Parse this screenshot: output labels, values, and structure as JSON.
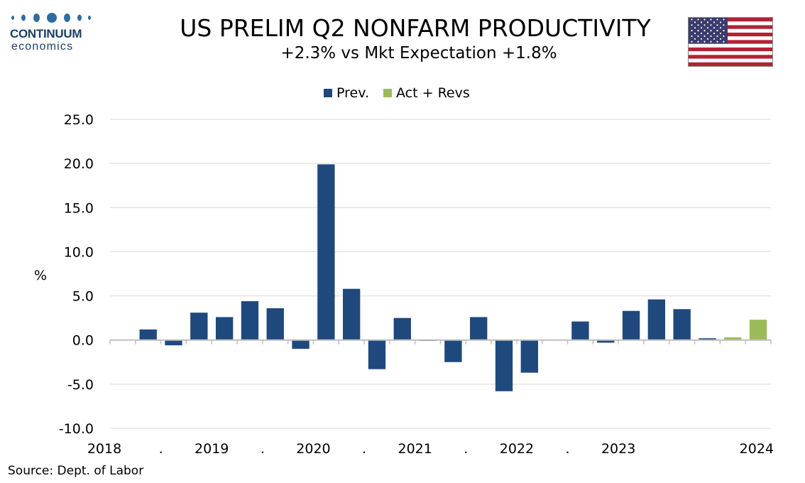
{
  "header": {
    "title": "US PRELIM Q2  NONFARM PRODUCTIVITY",
    "subtitle": "+2.3% vs Mkt Expectation +1.8%",
    "logo_word": "CONTINUUM",
    "logo_sub": "economics",
    "flag_icon": "us-flag-icon"
  },
  "footer": {
    "source": "Source: Dept. of Labor"
  },
  "colors": {
    "prev": "#1f497d",
    "act": "#9bbb59",
    "grid": "#d9d9d9",
    "axis": "#bfbfbf",
    "logo": "#1b3f66"
  },
  "chart_data": {
    "type": "bar",
    "title": "US PRELIM Q2  NONFARM PRODUCTIVITY",
    "subtitle": "+2.3% vs Mkt Expectation +1.8%",
    "xlabel": "",
    "ylabel": "%",
    "ylim": [
      -10,
      25
    ],
    "yticks": [
      "25.0",
      "20.0",
      "15.0",
      "10.0",
      "5.0",
      "0.0",
      "-5.0",
      "-10.0"
    ],
    "x_tick_labels": [
      "2018",
      ".",
      "2019",
      ".",
      "2020",
      ".",
      "2021",
      ".",
      "2022",
      ".",
      "2023",
      "",
      "2024"
    ],
    "grid": true,
    "legend": "top-center",
    "categories": [
      "2018Q1",
      "2018Q2",
      "2018Q3",
      "2018Q4",
      "2019Q1",
      "2019Q2",
      "2019Q3",
      "2019Q4",
      "2020Q1",
      "2020Q2",
      "2020Q3",
      "2020Q4",
      "2021Q1",
      "2021Q2",
      "2021Q3",
      "2021Q4",
      "2022Q1",
      "2022Q2",
      "2022Q3",
      "2022Q4",
      "2023Q1",
      "2023Q2",
      "2023Q3",
      "2023Q4",
      "2024Q1",
      "2024Q2"
    ],
    "series": [
      {
        "name": "Prev.",
        "color": "#1f497d",
        "values": [
          null,
          1.2,
          -0.6,
          3.1,
          2.6,
          4.4,
          3.6,
          -1.0,
          19.9,
          5.8,
          -3.3,
          2.5,
          -0.1,
          -2.5,
          2.6,
          -5.8,
          -3.7,
          null,
          2.1,
          -0.3,
          3.3,
          4.6,
          3.5,
          0.2,
          0.2,
          null
        ]
      },
      {
        "name": "Act + Revs",
        "color": "#9bbb59",
        "values": [
          null,
          null,
          null,
          null,
          null,
          null,
          null,
          null,
          null,
          null,
          null,
          null,
          null,
          null,
          null,
          null,
          null,
          null,
          null,
          null,
          null,
          null,
          null,
          null,
          0.3,
          2.3
        ]
      }
    ]
  }
}
